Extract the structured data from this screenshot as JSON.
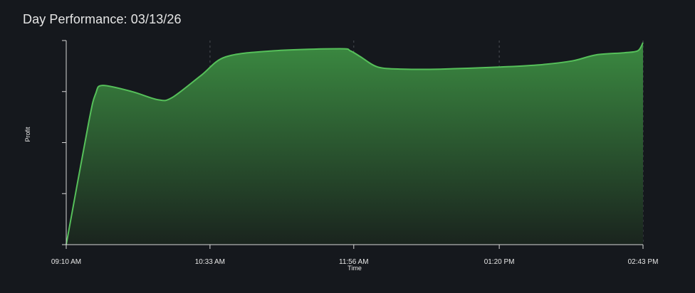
{
  "title": "Day Performance: 03/13/26",
  "chart_data": {
    "type": "area",
    "xlabel": "Time",
    "ylabel": "Profit",
    "x_ticks": [
      "09:10 AM",
      "10:33 AM",
      "11:56 AM",
      "01:20 PM",
      "02:43 PM"
    ],
    "x_range": [
      "09:10 AM",
      "02:43 PM"
    ],
    "y_tick_count": 5,
    "y_tick_labels_shown": false,
    "grid": "vertical-dashed",
    "legend": "none",
    "series": [
      {
        "x": [
          "09:10 AM",
          "09:23 AM",
          "09:27 AM",
          "09:31 AM",
          "09:48 AM",
          "10:03 AM",
          "10:11 AM",
          "10:28 AM",
          "10:42 AM",
          "11:10 AM",
          "11:48 AM",
          "11:54 AM",
          "12:00 PM",
          "12:10 PM",
          "12:25 PM",
          "12:46 PM",
          "01:20 PM",
          "01:42 PM",
          "02:02 PM",
          "02:16 PM",
          "02:32 PM",
          "02:40 PM",
          "02:43 PM"
        ],
        "values": [
          0.0,
          0.6,
          0.74,
          0.78,
          0.75,
          0.71,
          0.72,
          0.83,
          0.92,
          0.95,
          0.96,
          0.95,
          0.92,
          0.87,
          0.86,
          0.86,
          0.87,
          0.88,
          0.9,
          0.93,
          0.94,
          0.95,
          0.99
        ]
      }
    ],
    "colors": {
      "line": "#56c05a",
      "fill_top": "#3b8a41",
      "fill_bottom": "#1a241e",
      "background": "#15181d",
      "axis": "#d8d8d8",
      "grid": "#4a4e55"
    }
  }
}
